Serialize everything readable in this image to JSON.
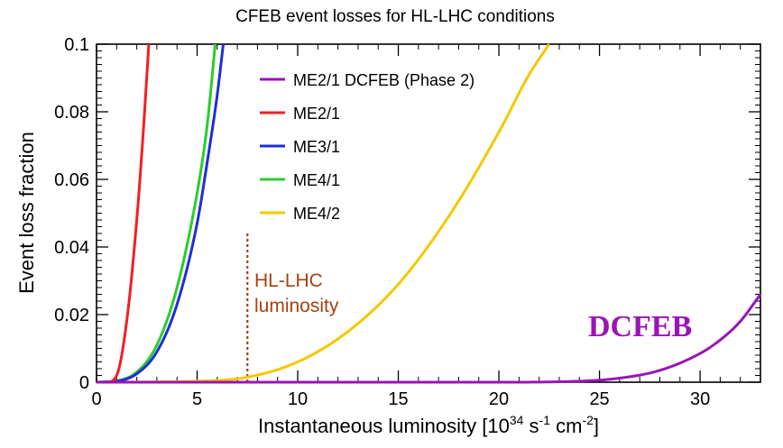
{
  "chart_data": {
    "type": "line",
    "title": "CFEB event losses for HL-LHC conditions",
    "xlabel": {
      "main": "Instantaneous luminosity [10",
      "exp1": "34",
      "mid1": " s",
      "exp2": "-1",
      "mid2": " cm",
      "exp3": "-2",
      "end": "]"
    },
    "ylabel": "Event loss fraction",
    "xlim": [
      0,
      33
    ],
    "ylim": [
      0,
      0.1
    ],
    "x_ticks": [
      {
        "value": 0,
        "label": "0"
      },
      {
        "value": 5,
        "label": "5"
      },
      {
        "value": 10,
        "label": "10"
      },
      {
        "value": 15,
        "label": "15"
      },
      {
        "value": 20,
        "label": "20"
      },
      {
        "value": 25,
        "label": "25"
      },
      {
        "value": 30,
        "label": "30"
      }
    ],
    "y_ticks": [
      {
        "value": 0,
        "label": "0"
      },
      {
        "value": 0.02,
        "label": "0.02"
      },
      {
        "value": 0.04,
        "label": "0.04"
      },
      {
        "value": 0.06,
        "label": "0.06"
      },
      {
        "value": 0.08,
        "label": "0.08"
      },
      {
        "value": 0.1,
        "label": "0.1"
      }
    ],
    "grid": false,
    "legend_position": "top-center",
    "series": [
      {
        "name": "ME2/1 DCFEB (Phase 2)",
        "color": "#9a14b5",
        "x": [
          0,
          10,
          20,
          24,
          26,
          28,
          30,
          31,
          32,
          33
        ],
        "y": [
          0,
          0,
          0,
          0.0003,
          0.0012,
          0.0035,
          0.0085,
          0.0125,
          0.018,
          0.026
        ]
      },
      {
        "name": "ME2/1",
        "color": "#f02020",
        "x": [
          0,
          0.5,
          1.0,
          1.5,
          2.0,
          2.3,
          2.6
        ],
        "y": [
          0,
          0,
          0.002,
          0.018,
          0.048,
          0.072,
          0.1
        ]
      },
      {
        "name": "ME3/1",
        "color": "#1f2ed4",
        "x": [
          0,
          1,
          2,
          3,
          4,
          5,
          5.5,
          6.0,
          6.3
        ],
        "y": [
          0,
          0.0003,
          0.0025,
          0.009,
          0.023,
          0.047,
          0.065,
          0.085,
          0.1
        ]
      },
      {
        "name": "ME4/1",
        "color": "#2bcc2b",
        "x": [
          0,
          1,
          2,
          3,
          4,
          5,
          5.5,
          5.9
        ],
        "y": [
          0,
          0.0004,
          0.003,
          0.011,
          0.028,
          0.056,
          0.076,
          0.1
        ]
      },
      {
        "name": "ME4/2",
        "color": "#f5c800",
        "x": [
          0,
          5,
          7.5,
          10,
          12.5,
          15,
          17.5,
          20,
          21.5,
          22.5
        ],
        "y": [
          0,
          0.0003,
          0.0015,
          0.006,
          0.015,
          0.029,
          0.049,
          0.074,
          0.091,
          0.1
        ]
      }
    ],
    "vline": {
      "x": 7.5,
      "color": "#a8400e",
      "label_line1": "HL-LHC",
      "label_line2": "luminosity"
    },
    "annotation": {
      "text": "DCFEB",
      "color": "#9a14b5"
    }
  }
}
